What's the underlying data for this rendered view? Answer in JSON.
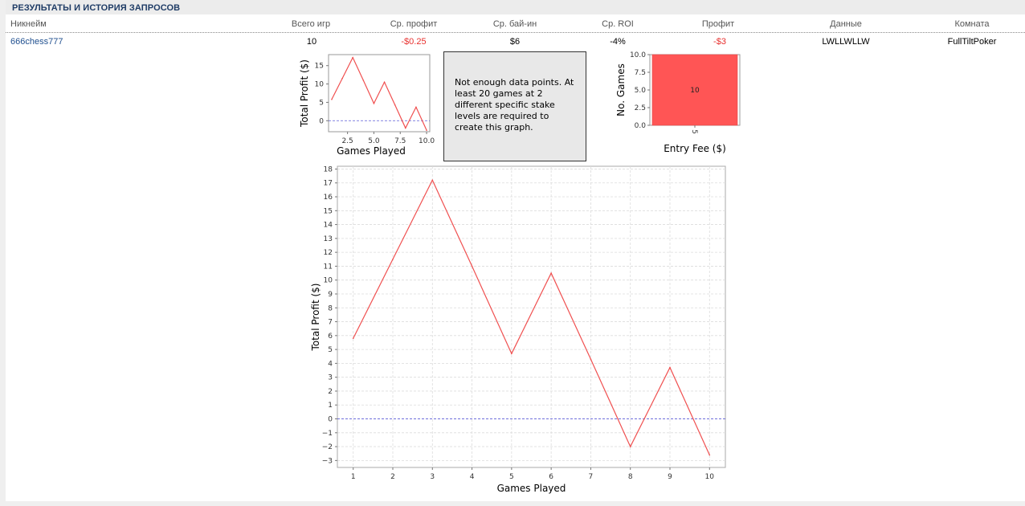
{
  "title": "РЕЗУЛЬТАТЫ И ИСТОРИЯ ЗАПРОСОВ",
  "columns": [
    "Никнейм",
    "Всего игр",
    "Ср. профит",
    "Ср. бай-ин",
    "Ср. ROI",
    "Профит",
    "Данные",
    "Комната"
  ],
  "row": {
    "nickname": "666chess777",
    "games": "10",
    "avg_profit": "-$0.25",
    "avg_buyin": "$6",
    "avg_roi": "-4%",
    "profit": "-$3",
    "data": "LWLLWLLW",
    "room": "FullTiltPoker"
  },
  "colors": {
    "line": "#f05050",
    "bar": "#ff5555",
    "zero_line": "#5b5bd6",
    "negative": "#e8302e",
    "title": "#1f3c66"
  },
  "message": "Not enough data points. At least 20 games at 2 different specific stake levels are required to create this graph.",
  "chart_data": [
    {
      "type": "line",
      "x": [
        1,
        2,
        3,
        4,
        5,
        6,
        7,
        8,
        9,
        10
      ],
      "y": [
        5.8,
        11.5,
        17.2,
        11.0,
        4.7,
        10.5,
        4.3,
        -2.0,
        3.7,
        -2.6
      ],
      "xlabel": "Games Played",
      "ylabel": "Total Profit ($)",
      "xticks": [
        "2.5",
        "5.0",
        "7.5",
        "10.0"
      ],
      "yticks": [
        "0",
        "5",
        "10",
        "15"
      ],
      "xlim": [
        0.7,
        10.3
      ],
      "ylim": [
        -3.0,
        18.0
      ]
    },
    {
      "type": "bar",
      "categories": [
        "5"
      ],
      "values": [
        10
      ],
      "data_labels": [
        "10"
      ],
      "xlabel": "Entry Fee ($)",
      "ylabel": "No. Games",
      "yticks": [
        "0.0",
        "2.5",
        "5.0",
        "7.5",
        "10.0"
      ],
      "ylim": [
        0,
        10
      ]
    },
    {
      "type": "line",
      "x": [
        1,
        2,
        3,
        4,
        5,
        6,
        7,
        8,
        9,
        10
      ],
      "y": [
        5.8,
        11.5,
        17.2,
        11.0,
        4.7,
        10.5,
        4.3,
        -2.0,
        3.7,
        -2.6
      ],
      "xlabel": "Games Played",
      "ylabel": "Total Profit ($)",
      "xticks": [
        "1",
        "2",
        "3",
        "4",
        "5",
        "6",
        "7",
        "8",
        "9",
        "10"
      ],
      "yticks": [
        "18",
        "17",
        "16",
        "15",
        "14",
        "13",
        "12",
        "11",
        "10",
        "9",
        "8",
        "7",
        "6",
        "5",
        "4",
        "3",
        "2",
        "1",
        "0",
        "−1",
        "−2",
        "−3"
      ],
      "xlim": [
        0.6,
        10.4
      ],
      "ylim": [
        -3.5,
        18.2
      ],
      "grid": true
    }
  ]
}
